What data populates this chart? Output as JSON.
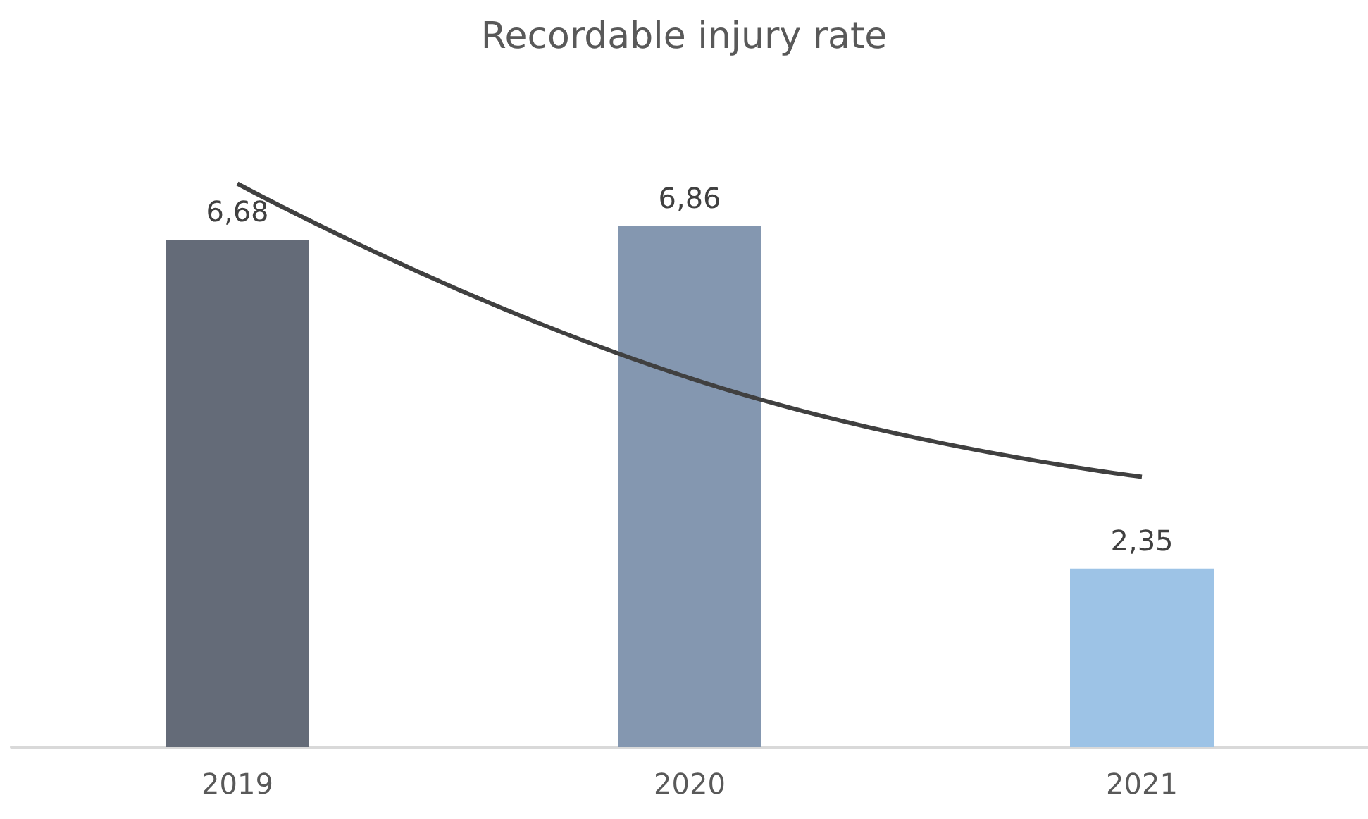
{
  "chart_data": {
    "type": "bar",
    "title": "Recordable injury rate",
    "categories": [
      "2019",
      "2020",
      "2021"
    ],
    "series": [
      {
        "colors": [
          "#646b78",
          "#8497b0",
          "#9dc3e6"
        ],
        "values": [
          6.68,
          6.86,
          2.35
        ],
        "value_labels": [
          "6,68",
          "6,86",
          "2,35"
        ]
      },
      {
        "type": "line",
        "color": "#404040",
        "values": [
          7.42,
          4.86,
          3.56
        ],
        "marker": "none"
      }
    ]
  }
}
